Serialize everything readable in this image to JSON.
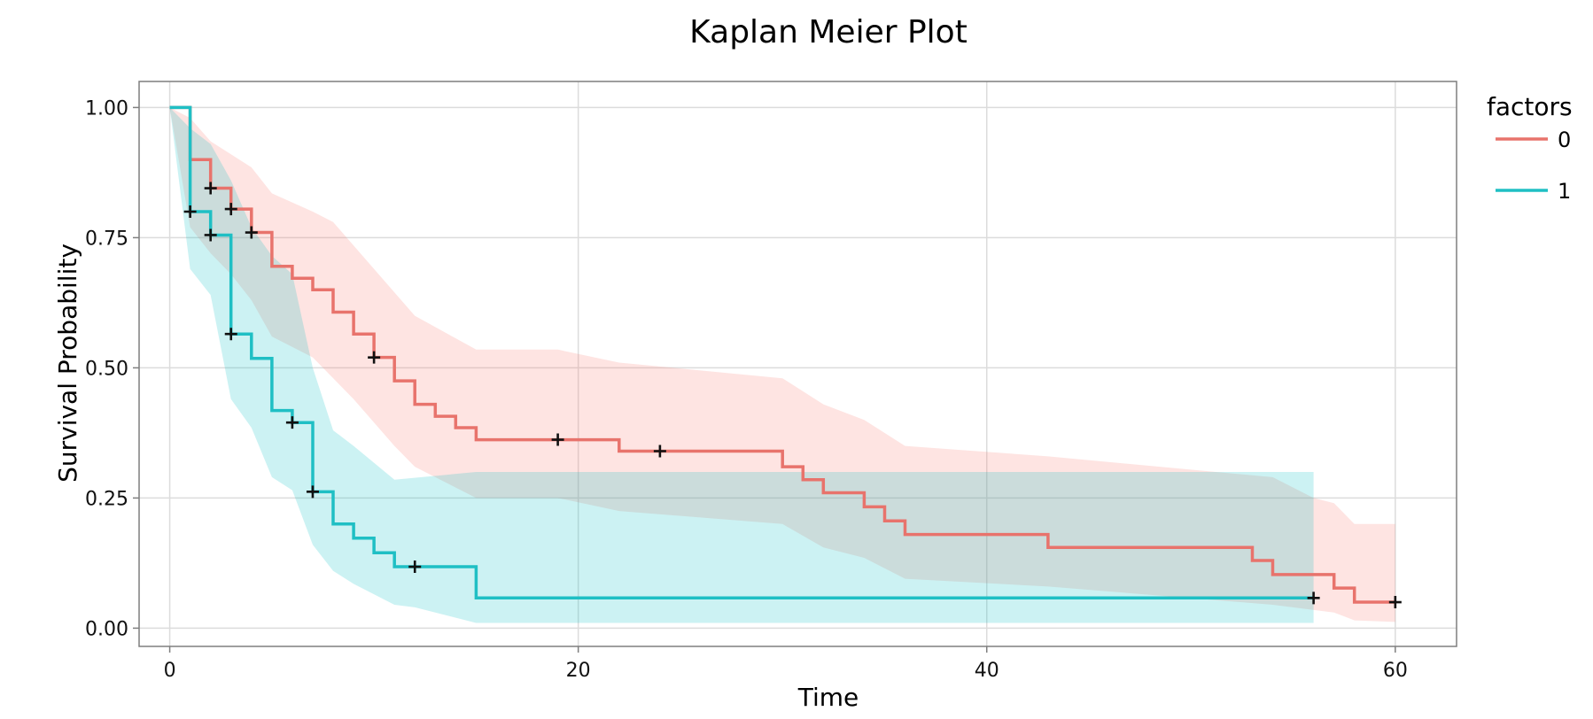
{
  "chart_data": {
    "type": "line",
    "title": "Kaplan Meier Plot",
    "xlabel": "Time",
    "ylabel": "Survival Probability",
    "xlim": [
      -1.5,
      63
    ],
    "ylim": [
      -0.035,
      1.05
    ],
    "xticks": [
      0,
      20,
      40,
      60
    ],
    "xtick_labels": [
      "0",
      "20",
      "40",
      "60"
    ],
    "yticks": [
      0,
      0.25,
      0.5,
      0.75,
      1
    ],
    "ytick_labels": [
      "0.00",
      "0.25",
      "0.50",
      "0.75",
      "1.00"
    ],
    "grid": true,
    "legend": {
      "title": "factors",
      "position": "right"
    },
    "series": [
      {
        "name": "0",
        "color": "#E8736C",
        "band_color": "#F8766D",
        "steps": [
          [
            0,
            1.0
          ],
          [
            1,
            0.9
          ],
          [
            2,
            0.845
          ],
          [
            3,
            0.805
          ],
          [
            4,
            0.76
          ],
          [
            5,
            0.695
          ],
          [
            6,
            0.672
          ],
          [
            7,
            0.65
          ],
          [
            8,
            0.607
          ],
          [
            9,
            0.565
          ],
          [
            10,
            0.52
          ],
          [
            11,
            0.475
          ],
          [
            12,
            0.43
          ],
          [
            13,
            0.407
          ],
          [
            14,
            0.385
          ],
          [
            15,
            0.362
          ],
          [
            22,
            0.34
          ],
          [
            30,
            0.31
          ],
          [
            31,
            0.285
          ],
          [
            32,
            0.26
          ],
          [
            34,
            0.233
          ],
          [
            35,
            0.206
          ],
          [
            36,
            0.18
          ],
          [
            43,
            0.155
          ],
          [
            53,
            0.13
          ],
          [
            54,
            0.103
          ],
          [
            57,
            0.077
          ],
          [
            58,
            0.05
          ],
          [
            60,
            0.05
          ]
        ],
        "upper": [
          [
            0,
            1.0
          ],
          [
            1,
            0.98
          ],
          [
            2,
            0.935
          ],
          [
            3,
            0.91
          ],
          [
            4,
            0.885
          ],
          [
            5,
            0.835
          ],
          [
            7,
            0.8
          ],
          [
            8,
            0.78
          ],
          [
            12,
            0.6
          ],
          [
            15,
            0.535
          ],
          [
            19,
            0.535
          ],
          [
            22,
            0.51
          ],
          [
            30,
            0.48
          ],
          [
            32,
            0.43
          ],
          [
            34,
            0.4
          ],
          [
            36,
            0.35
          ],
          [
            43,
            0.33
          ],
          [
            54,
            0.29
          ],
          [
            56,
            0.25
          ],
          [
            57,
            0.24
          ],
          [
            58,
            0.2
          ],
          [
            60,
            0.2
          ]
        ],
        "lower": [
          [
            0,
            1.0
          ],
          [
            1,
            0.77
          ],
          [
            2,
            0.72
          ],
          [
            3,
            0.68
          ],
          [
            4,
            0.63
          ],
          [
            5,
            0.56
          ],
          [
            7,
            0.52
          ],
          [
            9,
            0.44
          ],
          [
            11,
            0.35
          ],
          [
            12,
            0.31
          ],
          [
            15,
            0.25
          ],
          [
            19,
            0.25
          ],
          [
            22,
            0.225
          ],
          [
            30,
            0.2
          ],
          [
            32,
            0.155
          ],
          [
            34,
            0.135
          ],
          [
            36,
            0.095
          ],
          [
            43,
            0.08
          ],
          [
            54,
            0.045
          ],
          [
            57,
            0.03
          ],
          [
            58,
            0.015
          ],
          [
            60,
            0.012
          ]
        ],
        "censored": [
          [
            2,
            0.845
          ],
          [
            3,
            0.805
          ],
          [
            4,
            0.76
          ],
          [
            10,
            0.52
          ],
          [
            19,
            0.362
          ],
          [
            24,
            0.34
          ],
          [
            60,
            0.05
          ]
        ]
      },
      {
        "name": "1",
        "color": "#1FBFC4",
        "band_color": "#00BFC4",
        "steps": [
          [
            0,
            1.0
          ],
          [
            1,
            0.8
          ],
          [
            2,
            0.755
          ],
          [
            3,
            0.565
          ],
          [
            4,
            0.518
          ],
          [
            5,
            0.418
          ],
          [
            6,
            0.395
          ],
          [
            7,
            0.262
          ],
          [
            8,
            0.2
          ],
          [
            9,
            0.173
          ],
          [
            10,
            0.145
          ],
          [
            11,
            0.118
          ],
          [
            15,
            0.058
          ],
          [
            56,
            0.058
          ]
        ],
        "upper": [
          [
            0,
            1.0
          ],
          [
            1,
            0.96
          ],
          [
            2,
            0.93
          ],
          [
            3,
            0.86
          ],
          [
            4,
            0.77
          ],
          [
            5,
            0.715
          ],
          [
            6,
            0.68
          ],
          [
            7,
            0.5
          ],
          [
            8,
            0.38
          ],
          [
            9,
            0.35
          ],
          [
            11,
            0.285
          ],
          [
            15,
            0.3
          ],
          [
            56,
            0.3
          ]
        ],
        "lower": [
          [
            0,
            1.0
          ],
          [
            1,
            0.69
          ],
          [
            2,
            0.64
          ],
          [
            3,
            0.44
          ],
          [
            4,
            0.385
          ],
          [
            5,
            0.29
          ],
          [
            6,
            0.265
          ],
          [
            7,
            0.16
          ],
          [
            8,
            0.11
          ],
          [
            9,
            0.085
          ],
          [
            11,
            0.045
          ],
          [
            12,
            0.04
          ],
          [
            15,
            0.01
          ],
          [
            56,
            0.01
          ]
        ],
        "censored": [
          [
            1,
            0.8
          ],
          [
            2,
            0.755
          ],
          [
            3,
            0.565
          ],
          [
            6,
            0.395
          ],
          [
            7,
            0.262
          ],
          [
            12,
            0.118
          ],
          [
            56,
            0.058
          ]
        ]
      }
    ]
  }
}
